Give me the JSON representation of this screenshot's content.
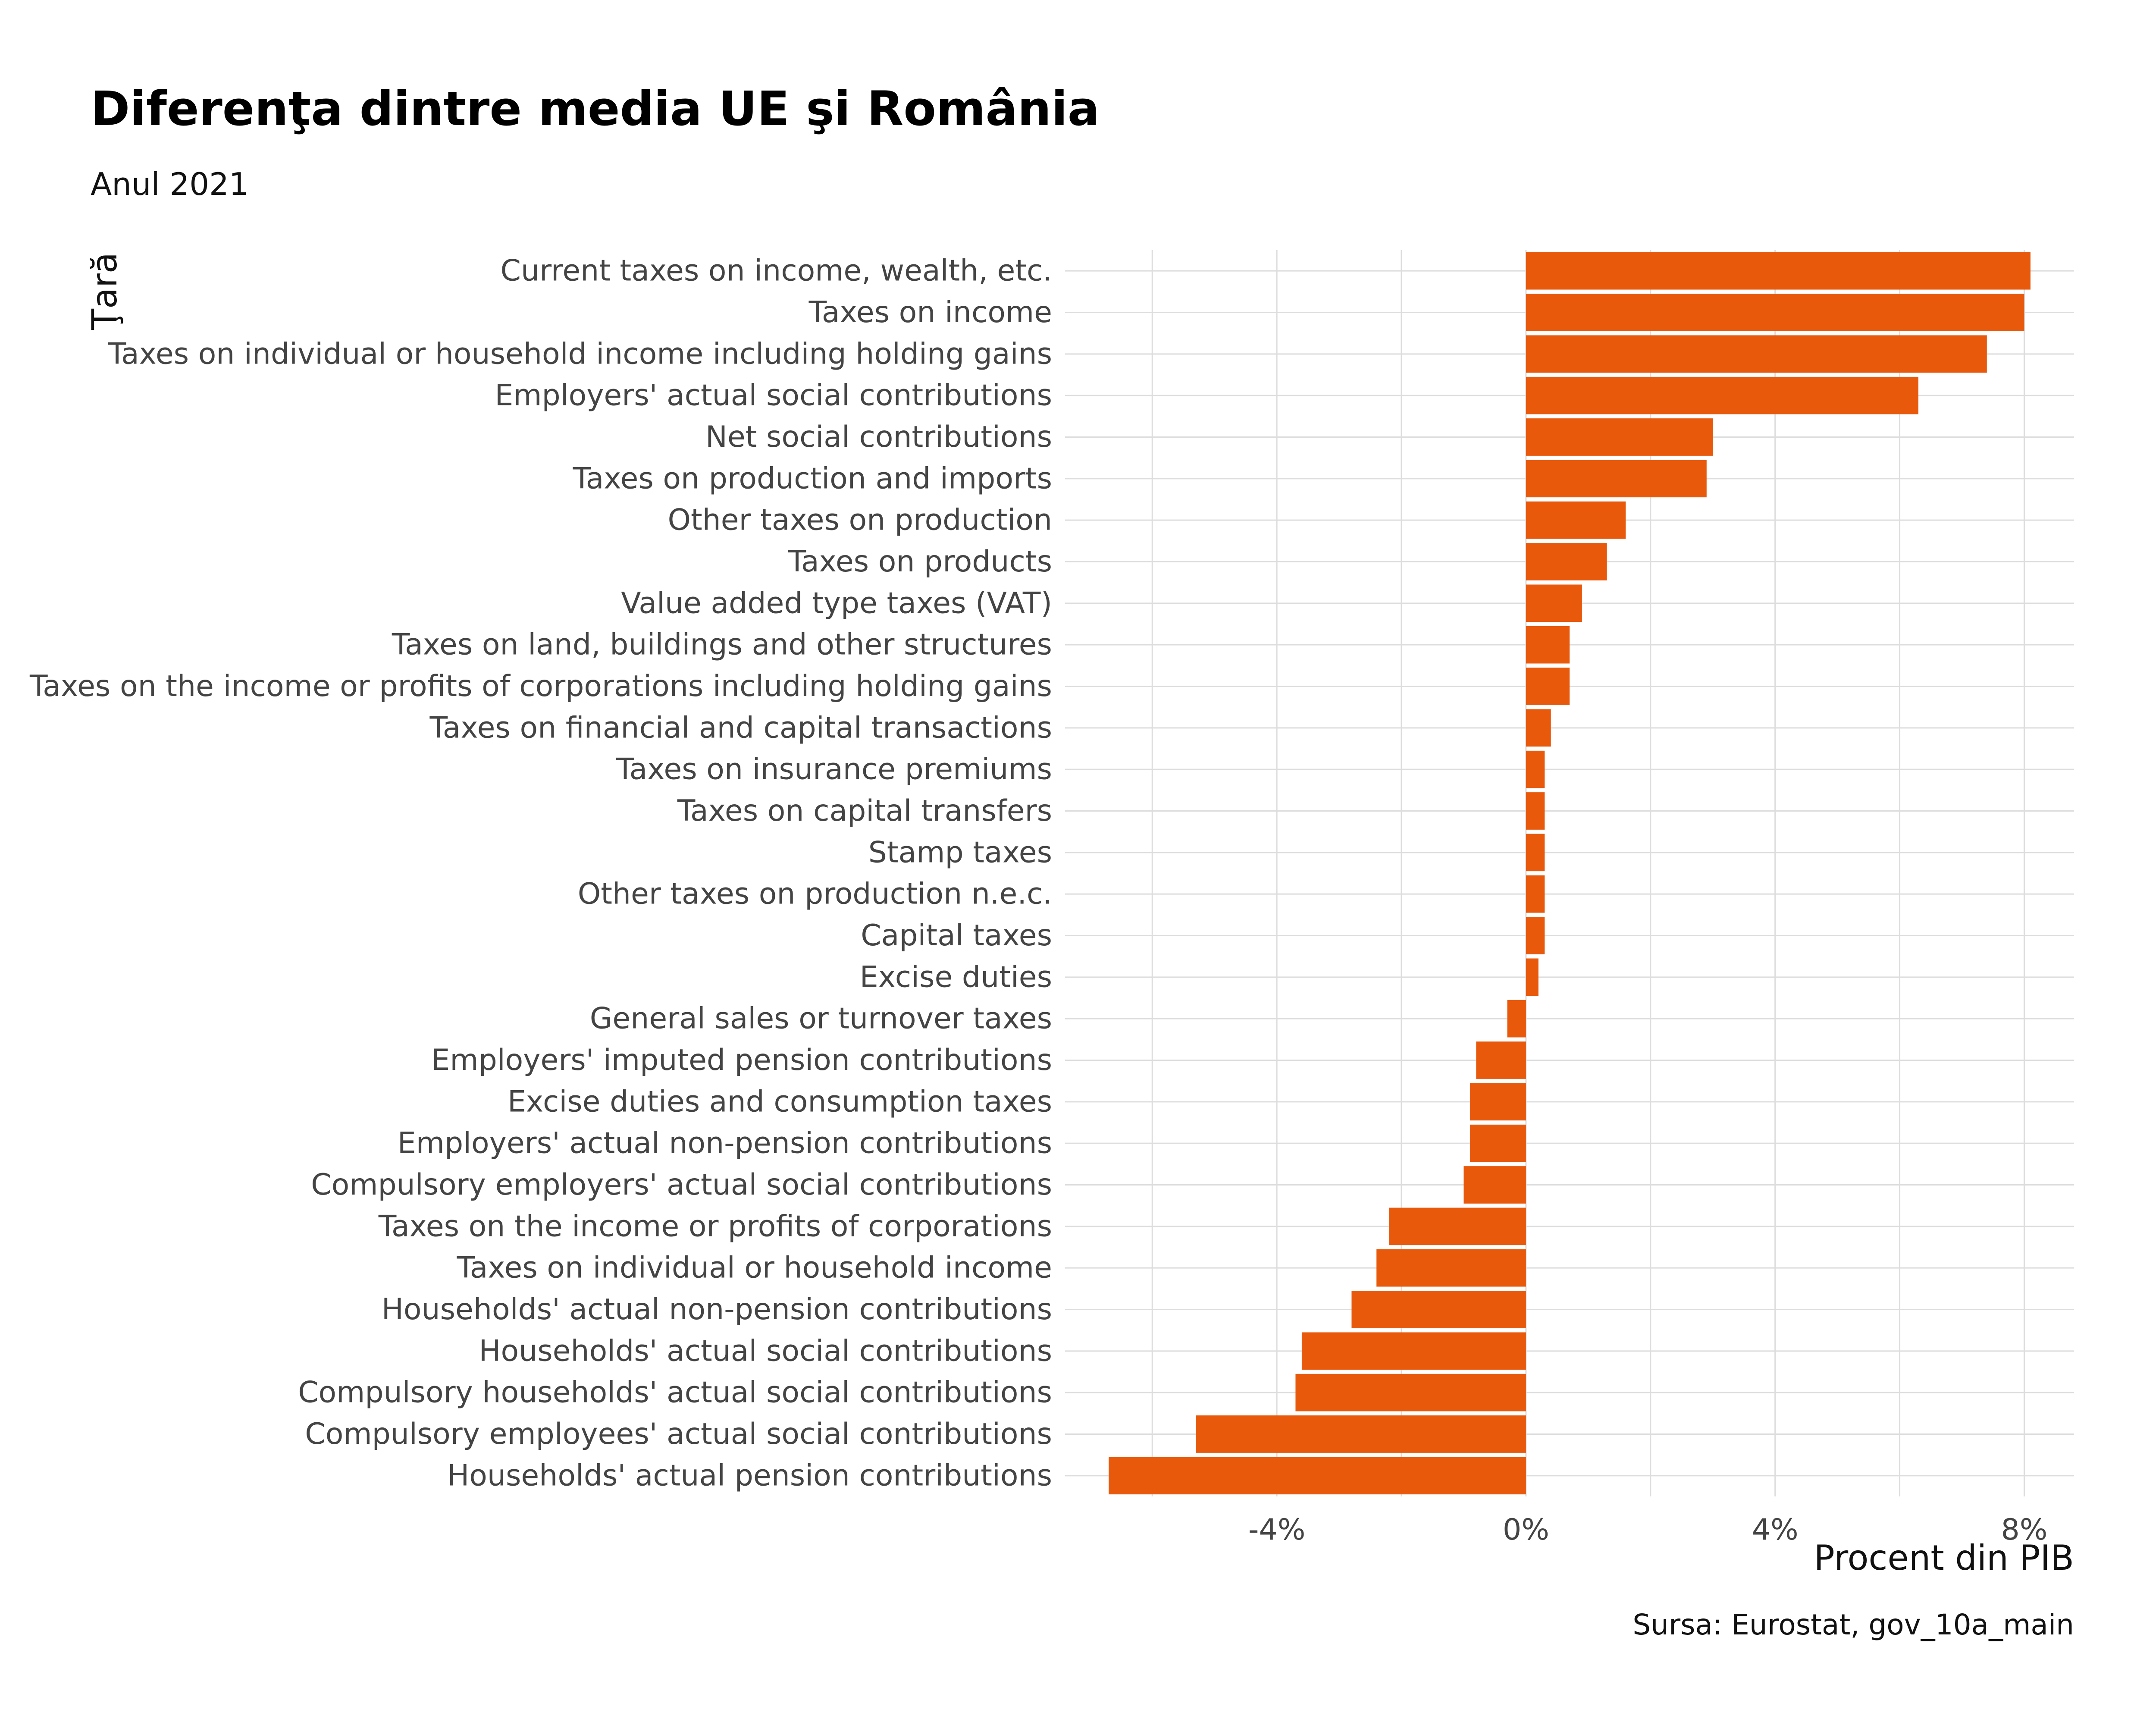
{
  "chart_data": {
    "type": "bar",
    "orientation": "horizontal",
    "title": "Diferenţa dintre media UE şi România",
    "subtitle": "Anul 2021",
    "ylabel": "Ţară",
    "xlabel": "Procent din PIB",
    "caption": "Sursa: Eurostat, gov_10a_main",
    "bar_color": "#E8590C",
    "grid": true,
    "xlim": [
      -7.4,
      8.8
    ],
    "x_ticks": [
      {
        "value": -4,
        "label": "-4%"
      },
      {
        "value": 0,
        "label": "0%"
      },
      {
        "value": 4,
        "label": "4%"
      },
      {
        "value": 8,
        "label": "8%"
      }
    ],
    "categories": [
      "Current taxes on income, wealth, etc.",
      "Taxes on income",
      "Taxes on individual or household income including holding gains",
      "Employers' actual social contributions",
      "Net social contributions",
      "Taxes on production and imports",
      "Other taxes on production",
      "Taxes on products",
      "Value added type taxes (VAT)",
      "Taxes on land, buildings and other structures",
      "Taxes on the income or profits of corporations including holding gains",
      "Taxes on financial and capital transactions",
      "Taxes on insurance premiums",
      "Taxes on capital transfers",
      "Stamp taxes",
      "Other taxes on production n.e.c.",
      "Capital taxes",
      "Excise duties",
      "General sales or turnover taxes",
      "Employers' imputed pension contributions",
      "Excise duties and consumption taxes",
      "Employers' actual non-pension contributions",
      "Compulsory employers' actual social contributions",
      "Taxes on the income or profits of corporations",
      "Taxes on individual or household income",
      "Households' actual non-pension contributions",
      "Households' actual social contributions",
      "Compulsory households' actual social contributions",
      "Compulsory employees' actual social contributions",
      "Households' actual pension contributions"
    ],
    "values": [
      8.1,
      8.0,
      7.4,
      6.3,
      3.0,
      2.9,
      1.6,
      1.3,
      0.9,
      0.7,
      0.7,
      0.4,
      0.3,
      0.3,
      0.3,
      0.3,
      0.3,
      0.2,
      -0.3,
      -0.8,
      -0.9,
      -0.9,
      -1.0,
      -2.2,
      -2.4,
      -2.8,
      -3.6,
      -3.7,
      -5.3,
      -6.7
    ]
  }
}
